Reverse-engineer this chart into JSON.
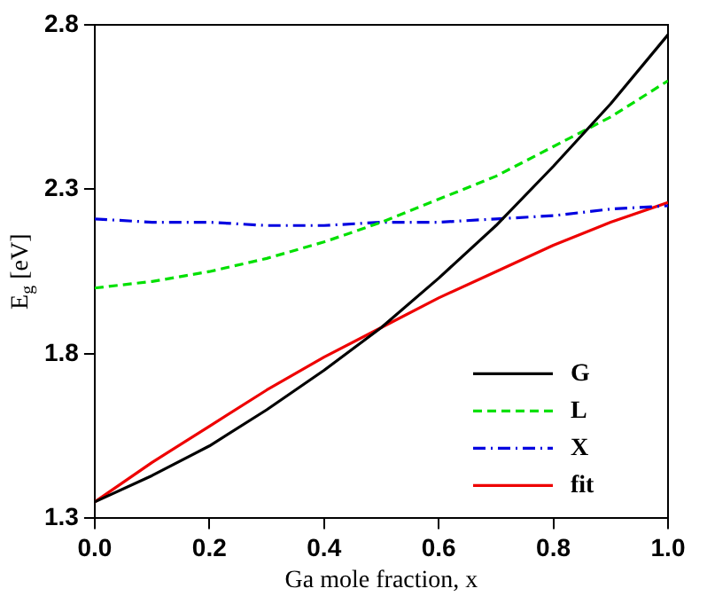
{
  "chart_data": {
    "type": "line",
    "xlabel": "Ga mole fraction, x",
    "ylabel": "E$_{g}$ [eV]",
    "x": [
      0,
      0.1,
      0.2,
      0.3,
      0.4,
      0.5,
      0.6,
      0.7,
      0.8,
      0.9,
      1
    ],
    "series": [
      {
        "name": "G",
        "color": "#000000",
        "line_style": "solid",
        "values": [
          1.35,
          1.43,
          1.52,
          1.63,
          1.75,
          1.88,
          2.03,
          2.19,
          2.37,
          2.56,
          2.77
        ]
      },
      {
        "name": "L",
        "color": "#00e000",
        "line_style": "dashed",
        "values": [
          2.0,
          2.02,
          2.05,
          2.09,
          2.14,
          2.2,
          2.27,
          2.34,
          2.43,
          2.52,
          2.63
        ]
      },
      {
        "name": "X",
        "color": "#0000e0",
        "line_style": "dashdot",
        "values": [
          2.21,
          2.2,
          2.2,
          2.19,
          2.19,
          2.2,
          2.2,
          2.21,
          2.22,
          2.24,
          2.25
        ]
      },
      {
        "name": "fit",
        "color": "#ee0000",
        "line_style": "solid",
        "values": [
          1.35,
          1.47,
          1.58,
          1.69,
          1.79,
          1.88,
          1.97,
          2.05,
          2.13,
          2.2,
          2.26
        ]
      }
    ],
    "xlim": [
      0,
      1
    ],
    "xticks": [
      {
        "value": 0,
        "label": "0.0"
      },
      0.2,
      0.4,
      0.6,
      0.8,
      {
        "value": 1,
        "label": "1.0"
      }
    ],
    "ylim": [
      1.3,
      2.8
    ],
    "yticks": [
      1.3,
      1.8,
      2.3,
      2.8
    ],
    "grid": false,
    "legend": "bottom right",
    "marker": "none"
  }
}
